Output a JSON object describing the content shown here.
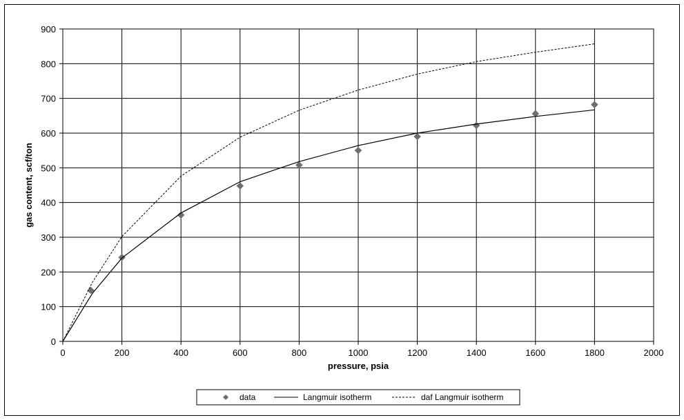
{
  "chart_data": {
    "type": "line",
    "xlabel": "pressure, psia",
    "ylabel": "gas content, scf/ton",
    "xlim": [
      0,
      2000
    ],
    "ylim": [
      0,
      900
    ],
    "x_ticks": [
      "0",
      "200",
      "400",
      "600",
      "800",
      "1000",
      "1200",
      "1400",
      "1600",
      "1800",
      "2000"
    ],
    "y_ticks": [
      "0",
      "100",
      "200",
      "300",
      "400",
      "500",
      "600",
      "700",
      "800",
      "900"
    ],
    "grid": true,
    "legend_position": "bottom",
    "series": [
      {
        "name": "data",
        "style": "markers",
        "marker": "diamond",
        "color": "#6e6e6e",
        "x": [
          95,
          200,
          400,
          600,
          800,
          1000,
          1200,
          1400,
          1600,
          1800
        ],
        "y": [
          147,
          242,
          364,
          448,
          508,
          550,
          590,
          622,
          656,
          682
        ]
      },
      {
        "name": "Langmuir isotherm",
        "style": "solid",
        "color": "#000000",
        "x": [
          0,
          100,
          200,
          400,
          600,
          800,
          1000,
          1200,
          1400,
          1600,
          1800
        ],
        "y": [
          0,
          138,
          240,
          370,
          460,
          518,
          564,
          600,
          626,
          648,
          667
        ]
      },
      {
        "name": "daf Langmuir isotherm",
        "style": "dashed",
        "color": "#000000",
        "x": [
          0,
          100,
          200,
          400,
          600,
          800,
          1000,
          1200,
          1400,
          1600,
          1800
        ],
        "y": [
          0,
          170,
          302,
          476,
          588,
          666,
          724,
          770,
          806,
          833,
          857
        ]
      }
    ]
  }
}
